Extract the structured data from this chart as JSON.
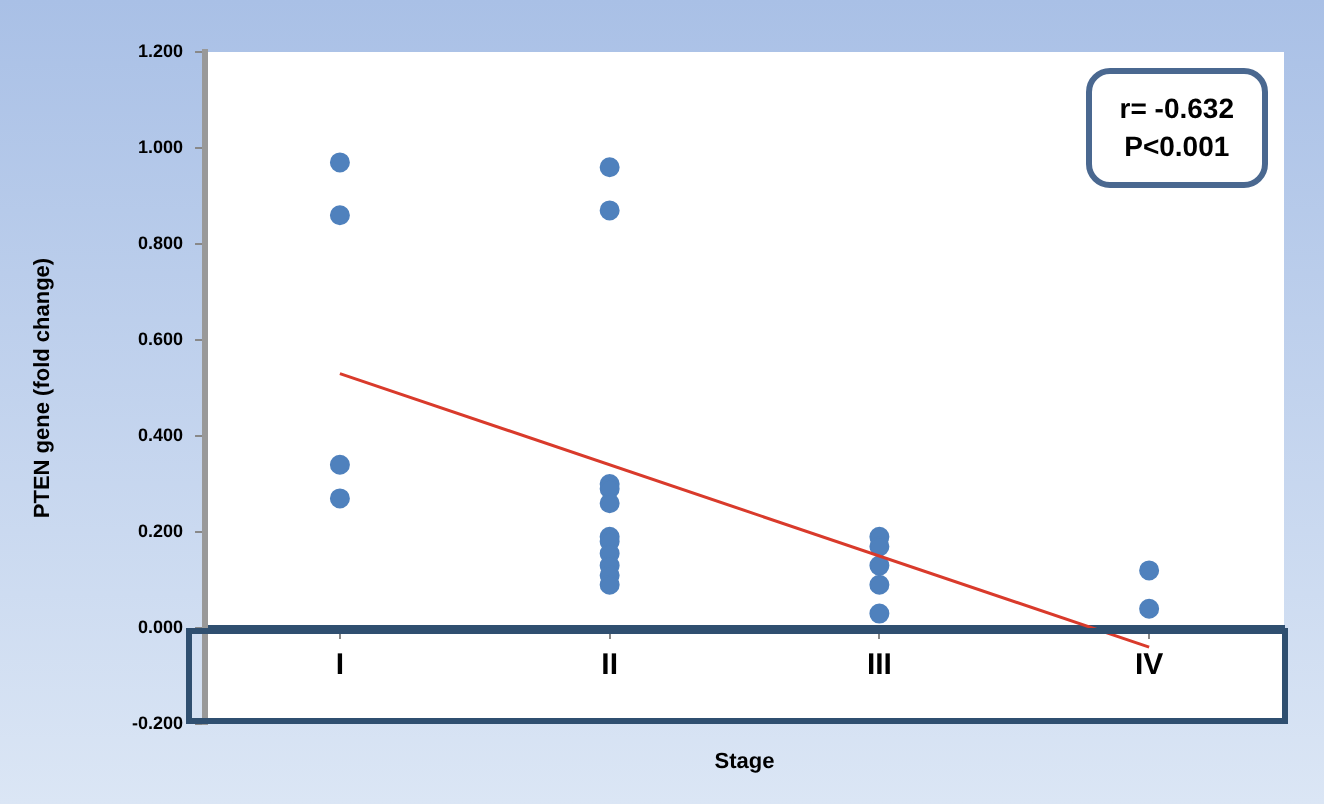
{
  "chart_data": {
    "type": "scatter",
    "xlabel": "Stage",
    "ylabel": "PTEN gene (fold change)",
    "categories": [
      "I",
      "II",
      "III",
      "IV"
    ],
    "ylim": [
      -0.2,
      1.2
    ],
    "yticks": [
      {
        "value": -0.2,
        "label": "-0.200"
      },
      {
        "value": 0,
        "label": "0.000"
      },
      {
        "value": 0.2,
        "label": "0.200"
      },
      {
        "value": 0.4,
        "label": "0.400"
      },
      {
        "value": 0.6,
        "label": "0.600"
      },
      {
        "value": 0.8,
        "label": "0.800"
      },
      {
        "value": 1.0,
        "label": "1.000"
      },
      {
        "value": 1.2,
        "label": "1.200"
      }
    ],
    "grid": false,
    "legend": false,
    "series": [
      {
        "color": "#4f81bd",
        "marker": "circle",
        "x": [
          "I",
          "I",
          "I",
          "I",
          "II",
          "II",
          "II",
          "II",
          "II",
          "II",
          "II",
          "II",
          "II",
          "II",
          "II",
          "III",
          "III",
          "III",
          "III",
          "III",
          "IV",
          "IV"
        ],
        "values": [
          0.97,
          0.86,
          0.34,
          0.27,
          0.96,
          0.87,
          0.3,
          0.29,
          0.26,
          0.19,
          0.18,
          0.155,
          0.13,
          0.11,
          0.09,
          0.19,
          0.17,
          0.13,
          0.09,
          0.03,
          0.12,
          0.04
        ]
      },
      {
        "type": "line",
        "color": "#d93a2b",
        "x": [
          "I",
          "IV"
        ],
        "values": [
          0.53,
          -0.04
        ]
      }
    ],
    "annotations": [
      "r= -0.632",
      "P<0.001"
    ]
  }
}
